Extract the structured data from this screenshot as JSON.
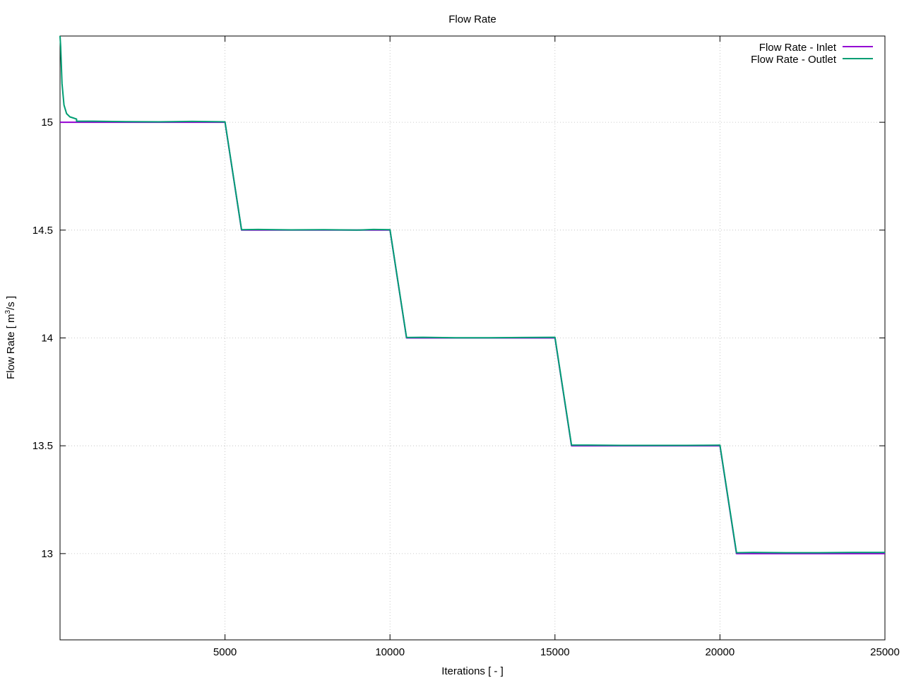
{
  "chart_data": {
    "type": "line",
    "title": "Flow Rate",
    "xlabel": "Iterations [ - ]",
    "ylabel_prefix": "Flow Rate [ m",
    "ylabel_sup": "3",
    "ylabel_suffix": "/s ]",
    "xlim": [
      0,
      25000
    ],
    "ylim": [
      12.6,
      15.4
    ],
    "x_ticks": [
      5000,
      10000,
      15000,
      20000,
      25000
    ],
    "x_tick_labels": [
      "5000",
      "10000",
      "15000",
      "20000",
      "25000"
    ],
    "y_ticks": [
      13,
      13.5,
      14,
      14.5,
      15
    ],
    "y_tick_labels": [
      "13",
      "13.5",
      "14",
      "14.5",
      "15"
    ],
    "grid": true,
    "legend_position": "top-right",
    "series": [
      {
        "name": "Flow Rate - Inlet",
        "color": "#9400d3",
        "x": [
          0,
          5000,
          5500,
          10000,
          10500,
          15000,
          15500,
          20000,
          20500,
          25000
        ],
        "y": [
          15.0,
          15.0,
          14.5,
          14.5,
          14.0,
          14.0,
          13.5,
          13.5,
          13.0,
          13.0
        ]
      },
      {
        "name": "Flow Rate - Outlet",
        "color": "#009e73",
        "x": [
          0,
          20,
          60,
          120,
          200,
          300,
          400,
          500,
          500,
          1000,
          2000,
          3000,
          4000,
          5000,
          5500,
          6000,
          7000,
          8000,
          9000,
          9500,
          10000,
          10500,
          11000,
          12000,
          13000,
          14000,
          15000,
          15500,
          16000,
          17000,
          18000,
          19000,
          20000,
          20500,
          21000,
          22000,
          23000,
          24000,
          25000
        ],
        "y": [
          15.4,
          15.35,
          15.18,
          15.08,
          15.04,
          15.025,
          15.02,
          15.015,
          15.005,
          15.005,
          15.003,
          15.002,
          15.004,
          15.002,
          14.502,
          14.503,
          14.501,
          14.502,
          14.5,
          14.503,
          14.502,
          14.002,
          14.003,
          14.001,
          14.001,
          14.002,
          14.003,
          13.503,
          13.503,
          13.502,
          13.502,
          13.502,
          13.503,
          13.004,
          13.005,
          13.004,
          13.004,
          13.005,
          13.005
        ]
      }
    ]
  }
}
